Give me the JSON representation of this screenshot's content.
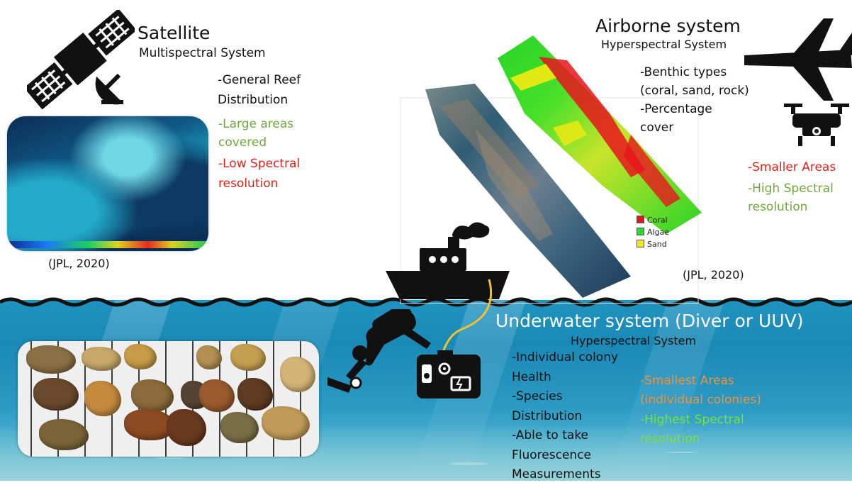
{
  "satellite": {
    "title": "Satellite",
    "subtitle": "Multispectral System",
    "description": "-General Reef\nDistribution",
    "pro": "-Large areas\ncovered",
    "con": "-Low Spectral\nresolution",
    "citation": "(JPL, 2020)"
  },
  "airborne": {
    "title": "Airborne system",
    "subtitle": "Hyperspectral System",
    "description": "-Benthic types\n(coral, sand, rock)\n -Percentage\ncover",
    "con": "-Smaller Areas",
    "pro": "-High Spectral\nresolution",
    "citation": "(JPL, 2020)",
    "legend": [
      {
        "label": "Coral",
        "color": "#e8141c"
      },
      {
        "label": "Algae",
        "color": "#22dd22"
      },
      {
        "label": "Sand",
        "color": "#f2ea12"
      }
    ]
  },
  "underwater": {
    "title": "Underwater system (Diver or UUV)",
    "subtitle": "Hyperspectral System",
    "description": "-Individual colony\nHealth\n-Species\nDistribution\n-Able to take\nFluorescence\nMeasurements",
    "con": "-Smallest Areas\n(individual colonies)",
    "pro": "-Highest Spectral\nresolution"
  },
  "colors": {
    "pro_green": "#70a83a",
    "con_red": "#e0231a",
    "underwater_orange": "#f2903a",
    "underwater_green": "#77e23a",
    "ocean": "#1f93bf"
  },
  "icons": [
    "satellite-icon",
    "airplane-icon",
    "drone-icon",
    "ship-icon",
    "diver-icon",
    "camera-housing-icon"
  ]
}
